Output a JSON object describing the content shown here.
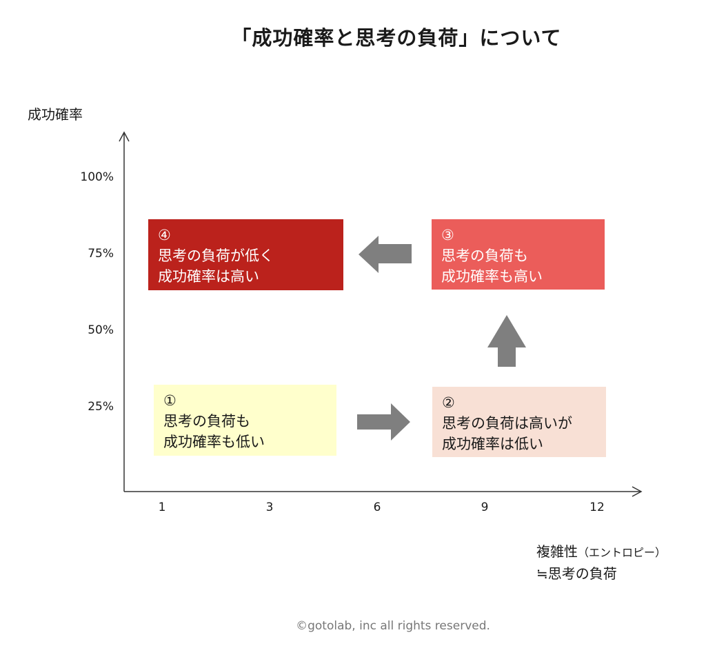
{
  "title": "「成功確率と思考の負荷」について",
  "y_axis": {
    "label": "成功確率",
    "ticks": [
      "100%",
      "75%",
      "50%",
      "25%"
    ]
  },
  "x_axis": {
    "ticks": [
      "1",
      "3",
      "6",
      "9",
      "12"
    ],
    "label_line1": "複雑性",
    "label_line1_small": "（エントロピー）",
    "label_line2": "≒思考の負荷"
  },
  "quadrants": {
    "q1": {
      "number": "①",
      "line1": "思考の負荷も",
      "line2": "成功確率も低い"
    },
    "q2": {
      "number": "②",
      "line1": "思考の負荷は高いが",
      "line2": "成功確率は低い"
    },
    "q3": {
      "number": "③",
      "line1": "思考の負荷も",
      "line2": "成功確率も高い"
    },
    "q4": {
      "number": "④",
      "line1": "思考の負荷が低く",
      "line2": "成功確率は高い"
    }
  },
  "colors": {
    "q1": "#ffffcc",
    "q2": "#f8e0d5",
    "q3": "#eb5d5a",
    "q4": "#bb221c",
    "arrow": "#7f7f7f",
    "axis": "#333333"
  },
  "footer": "©gotolab, inc  all rights reserved."
}
